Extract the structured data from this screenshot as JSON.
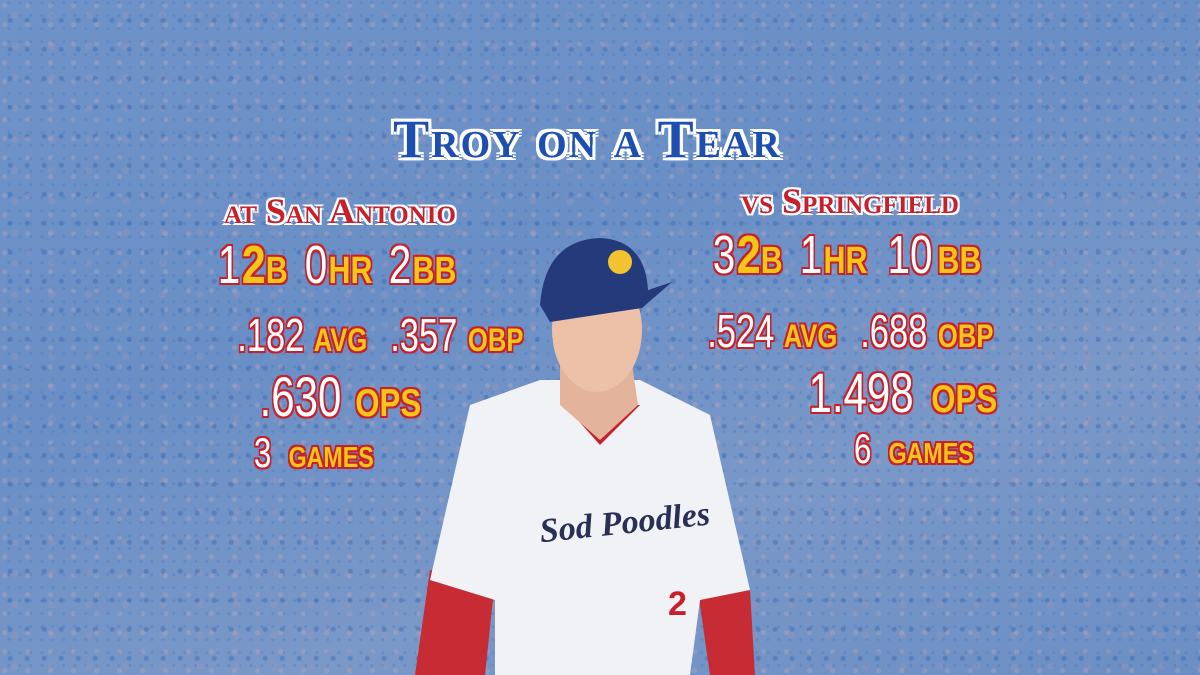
{
  "title": "Troy on a Tear",
  "left": {
    "header": "at San Antonio",
    "counts": [
      {
        "value": "1",
        "label": "2b"
      },
      {
        "value": "0",
        "label": "hr"
      },
      {
        "value": "2",
        "label": "bb"
      }
    ],
    "rates": [
      {
        "value": ".182",
        "label": "avg"
      },
      {
        "value": ".357",
        "label": "obp"
      }
    ],
    "ops": {
      "value": ".630",
      "label": "ops"
    },
    "games": {
      "value": "3",
      "label": "games"
    }
  },
  "right": {
    "header": "vs Springfield",
    "counts": [
      {
        "value": "3",
        "label": "2b"
      },
      {
        "value": "1",
        "label": "hr"
      },
      {
        "value": "10",
        "label": "bb"
      }
    ],
    "rates": [
      {
        "value": ".524",
        "label": "avg"
      },
      {
        "value": ".688",
        "label": "obp"
      }
    ],
    "ops": {
      "value": "1.498",
      "label": "ops"
    },
    "games": {
      "value": "6",
      "label": "games"
    }
  },
  "photo": {
    "jersey_text": "Sod Poodles",
    "jersey_number": "2"
  },
  "colors": {
    "title": "#1c4fb0",
    "header": "#c8202a",
    "number": "#ffffff",
    "label": "#f5c518",
    "outline": "#c8202a",
    "background": "#6f93c8"
  }
}
